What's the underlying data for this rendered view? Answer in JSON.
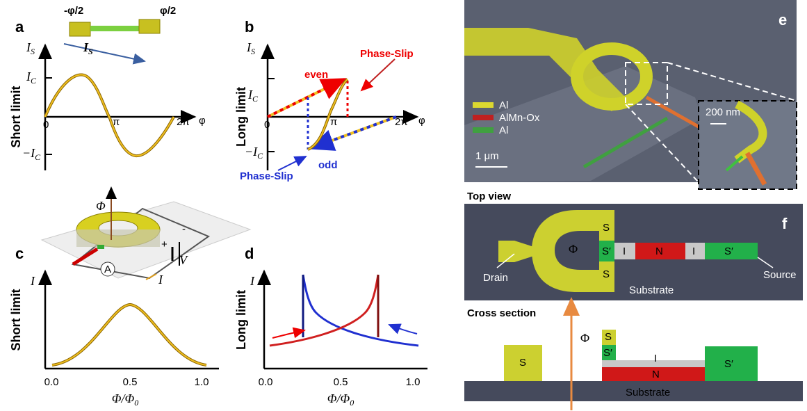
{
  "panel_a": {
    "label": "a",
    "phase_left": "-φ/2",
    "phase_right": "φ/2",
    "bar_current": {
      "main": "I",
      "sub": "S"
    },
    "y_axis": {
      "main": "I",
      "sub": "S"
    },
    "ic": {
      "main": "I",
      "sub": "C"
    },
    "minus_ic": {
      "main": "−I",
      "sub": "C"
    },
    "x_ticks": [
      "0",
      "π",
      "2π"
    ],
    "x_axis": "φ",
    "y_title": "Short limit"
  },
  "panel_b": {
    "label": "b",
    "y_axis": {
      "main": "I",
      "sub": "S"
    },
    "ic": {
      "main": "I",
      "sub": "C"
    },
    "minus_ic": {
      "main": "−I",
      "sub": "C"
    },
    "x_ticks": [
      "0",
      "π",
      "2π"
    ],
    "x_axis": "φ",
    "y_title": "Long limit",
    "phase_slip_top": "Phase-Slip",
    "even": "even",
    "odd": "odd",
    "phase_slip_bottom": "Phase-Slip"
  },
  "panel_c": {
    "label": "c",
    "flux": "Φ",
    "voltage": "V",
    "current": "I",
    "ammeter": "A",
    "plus": "+",
    "minus": "-",
    "y_axis": "I",
    "y_title": "Short limit",
    "x_ticks": [
      "0.0",
      "0.5",
      "1.0"
    ],
    "x_axis": {
      "main": "Φ/Φ",
      "sub": "0"
    }
  },
  "panel_d": {
    "label": "d",
    "y_axis": "I",
    "y_title": "Long limit",
    "x_ticks": [
      "0.0",
      "0.5",
      "1.0"
    ],
    "x_axis": {
      "main": "Φ/Φ",
      "sub": "0"
    }
  },
  "panel_e": {
    "label": "e",
    "legend": [
      "Al",
      "AlMn-Ox",
      "Al"
    ],
    "scale_main": "1 μm",
    "scale_inset": "200 nm"
  },
  "panel_f": {
    "label": "f",
    "top_view": {
      "title": "Top view",
      "flux": "Φ",
      "s_top": "S",
      "s_prime_left": "S′",
      "s_bottom": "S",
      "i_left": "I",
      "n": "N",
      "i_right": "I",
      "s_prime_right": "S′",
      "drain": "Drain",
      "source": "Source",
      "substrate": "Substrate"
    },
    "cross_section": {
      "title": "Cross section",
      "s_left": "S",
      "flux": "Φ",
      "s_small": "S",
      "s_prime_small": "S′",
      "i": "I",
      "n": "N",
      "s_prime_right": "S′",
      "substrate": "Substrate"
    }
  }
}
